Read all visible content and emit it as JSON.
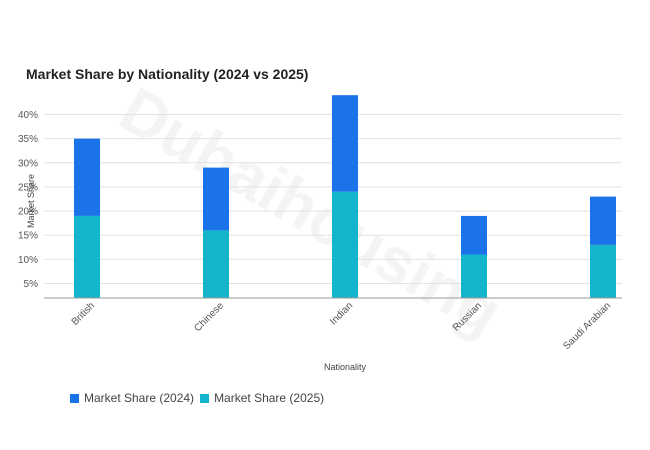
{
  "watermark": "Dubaihousing",
  "chart_data": {
    "type": "bar",
    "stacked": true,
    "title": "Market Share by Nationality (2024 vs 2025)",
    "xlabel": "Nationality",
    "ylabel": "Market Share",
    "categories": [
      "British",
      "Chinese",
      "Indian",
      "Russian",
      "Saudi Arabian"
    ],
    "series": [
      {
        "name": "Market Share (2024)",
        "color": "#1a73e8",
        "values": [
          16,
          13,
          20,
          8,
          10
        ]
      },
      {
        "name": "Market Share (2025)",
        "color": "#12b5cb",
        "values": [
          17,
          14,
          22,
          9,
          11
        ]
      }
    ],
    "ylim": [
      2,
      43
    ],
    "yticks": [
      5,
      10,
      15,
      20,
      25,
      30,
      35,
      40
    ],
    "ytick_labels": [
      "5%",
      "10%",
      "15%",
      "20%",
      "25%",
      "30%",
      "35%",
      "40%"
    ],
    "grid": true,
    "legend_position": "bottom-left"
  }
}
